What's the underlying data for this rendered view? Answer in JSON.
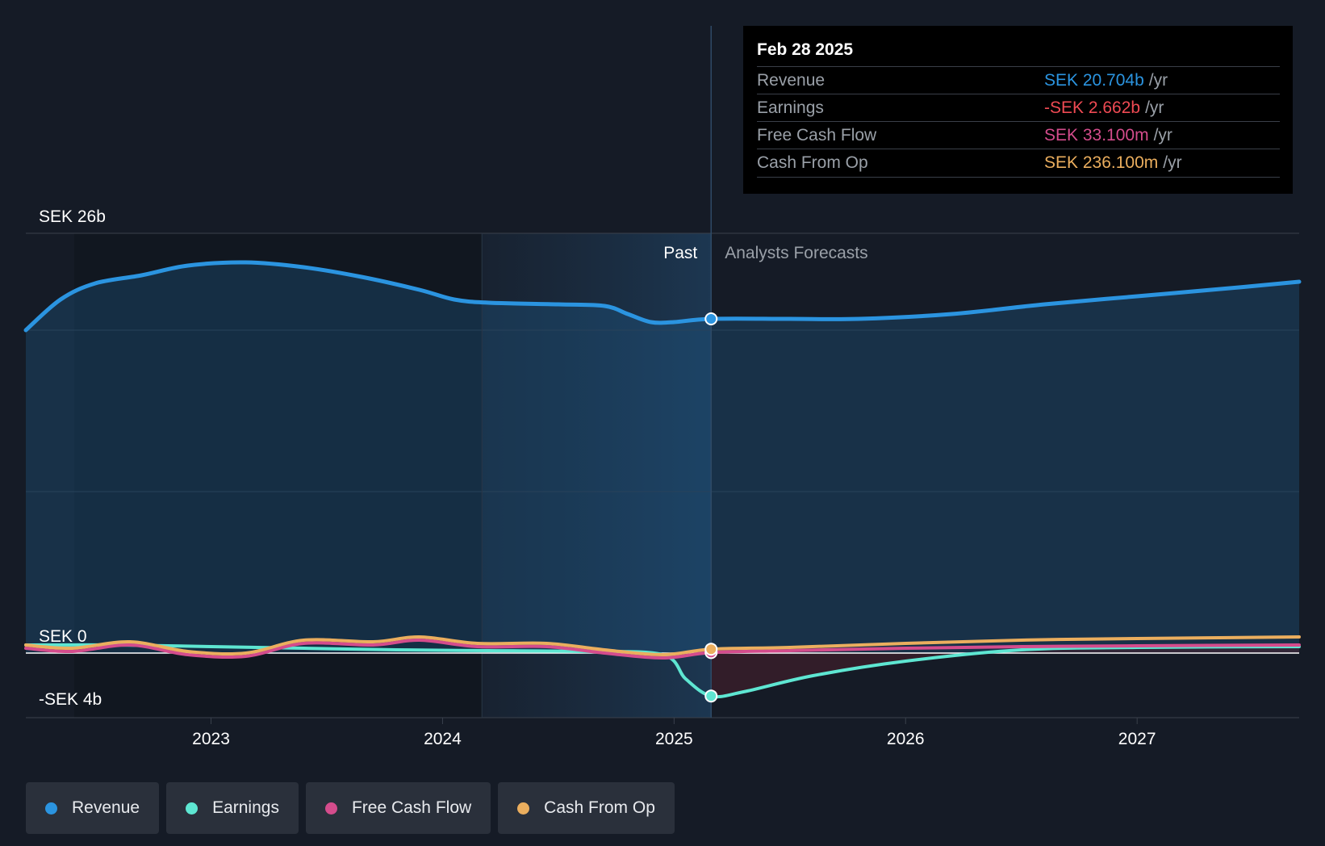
{
  "colors": {
    "background": "#151b26",
    "revenue": "#2b94e0",
    "earnings": "#5ee6d2",
    "free_cash_flow": "#d44c8c",
    "cash_from_op": "#ebae5e",
    "earnings_negative_value": "#ef4a53"
  },
  "chart_data": {
    "type": "area",
    "title": "",
    "unit": "SEK b",
    "y_axis": {
      "min": -4,
      "max": 26,
      "tick_labels": [
        "SEK 26b",
        "SEK 0",
        "-SEK 4b"
      ],
      "gridlines": [
        20,
        10
      ]
    },
    "x_axis": {
      "min": 2022.2,
      "max": 2027.7,
      "tick_labels": [
        "2023",
        "2024",
        "2025",
        "2026",
        "2027"
      ],
      "ticks": [
        2023,
        2024,
        2025,
        2026,
        2027
      ]
    },
    "divider_label_past": "Past",
    "divider_label_forecast": "Analysts Forecasts",
    "divider_x": 2025.16,
    "highlight_band": [
      2024.17,
      2025.16
    ],
    "series": [
      {
        "name": "Revenue",
        "key": "revenue",
        "x": [
          2022.2,
          2022.35,
          2022.5,
          2022.7,
          2022.9,
          2023.15,
          2023.4,
          2023.65,
          2023.9,
          2024.05,
          2024.2,
          2024.5,
          2024.7,
          2024.8,
          2024.9,
          2025.0,
          2025.16,
          2025.5,
          2025.8,
          2026.2,
          2026.6,
          2027.0,
          2027.4,
          2027.7
        ],
        "values": [
          20.0,
          21.9,
          22.9,
          23.4,
          24.0,
          24.2,
          23.9,
          23.3,
          22.5,
          21.9,
          21.7,
          21.6,
          21.5,
          21.0,
          20.5,
          20.5,
          20.7,
          20.7,
          20.7,
          21.0,
          21.6,
          22.1,
          22.6,
          23.0
        ]
      },
      {
        "name": "Earnings",
        "key": "earnings",
        "x": [
          2022.2,
          2022.6,
          2023.0,
          2023.4,
          2023.8,
          2024.2,
          2024.6,
          2024.95,
          2025.05,
          2025.16,
          2025.3,
          2025.6,
          2026.0,
          2026.5,
          2027.0,
          2027.7
        ],
        "values": [
          0.5,
          0.5,
          0.4,
          0.3,
          0.2,
          0.15,
          0.1,
          -0.1,
          -1.6,
          -2.66,
          -2.4,
          -1.4,
          -0.5,
          0.2,
          0.35,
          0.4
        ]
      },
      {
        "name": "Free Cash Flow",
        "key": "free_cash_flow",
        "x": [
          2022.2,
          2022.4,
          2022.65,
          2022.9,
          2023.15,
          2023.4,
          2023.7,
          2023.9,
          2024.15,
          2024.45,
          2024.7,
          2024.95,
          2025.16,
          2025.5,
          2026.0,
          2026.5,
          2027.0,
          2027.7
        ],
        "values": [
          0.3,
          0.1,
          0.5,
          -0.1,
          -0.2,
          0.6,
          0.5,
          0.8,
          0.4,
          0.4,
          0.0,
          -0.3,
          0.03,
          0.15,
          0.3,
          0.4,
          0.45,
          0.5
        ]
      },
      {
        "name": "Cash From Op",
        "key": "cash_from_op",
        "x": [
          2022.2,
          2022.4,
          2022.65,
          2022.9,
          2023.15,
          2023.4,
          2023.7,
          2023.9,
          2024.15,
          2024.45,
          2024.7,
          2024.95,
          2025.16,
          2025.5,
          2026.0,
          2026.5,
          2027.0,
          2027.7
        ],
        "values": [
          0.5,
          0.3,
          0.7,
          0.1,
          0.0,
          0.8,
          0.7,
          1.0,
          0.6,
          0.6,
          0.2,
          -0.1,
          0.24,
          0.35,
          0.6,
          0.8,
          0.9,
          1.0
        ]
      }
    ]
  },
  "tooltip": {
    "date": "Feb 28 2025",
    "rows": [
      {
        "label": "Revenue",
        "value": "SEK 20.704b",
        "unit": "/yr"
      },
      {
        "label": "Earnings",
        "value": "-SEK 2.662b",
        "unit": "/yr"
      },
      {
        "label": "Free Cash Flow",
        "value": "SEK 33.100m",
        "unit": "/yr"
      },
      {
        "label": "Cash From Op",
        "value": "SEK 236.100m",
        "unit": "/yr"
      }
    ]
  },
  "legend": [
    {
      "label": "Revenue"
    },
    {
      "label": "Earnings"
    },
    {
      "label": "Free Cash Flow"
    },
    {
      "label": "Cash From Op"
    }
  ]
}
